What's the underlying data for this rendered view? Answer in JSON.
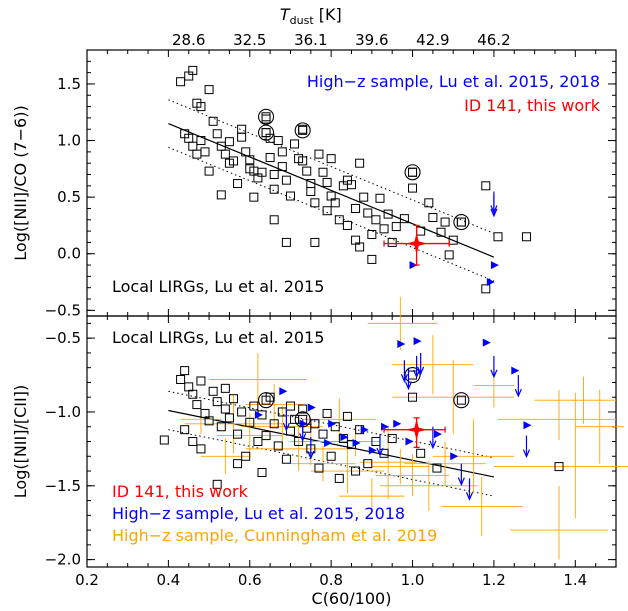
{
  "chart_data": {
    "type": "scatter",
    "colors": {
      "local": "#000000",
      "highz": "#0000ff",
      "cunningham": "#ffa500",
      "id141": "#ff0000"
    },
    "top_axis": {
      "label_symbol": "T",
      "label_subscript": "dust",
      "label_unit": " [K]",
      "tick_labels": [
        "28.6",
        "32.5",
        "36.1",
        "39.6",
        "42.9",
        "46.2"
      ],
      "tick_positions_x": [
        0.45,
        0.6,
        0.75,
        0.9,
        1.05,
        1.2
      ]
    },
    "x_axis": {
      "label": "C(60/100)",
      "range": [
        0.2,
        1.5
      ],
      "ticks": [
        0.2,
        0.4,
        0.6,
        0.8,
        1.0,
        1.2,
        1.4
      ],
      "tick_labels": [
        "0.2",
        "0.4",
        "0.6",
        "0.8",
        "1.0",
        "1.2",
        "1.4"
      ]
    },
    "panels": [
      {
        "id": "top",
        "ylabel": "Log([NII]/CO (7−6))",
        "y_range": [
          -0.55,
          1.8
        ],
        "y_ticks": [
          -0.5,
          0.0,
          0.5,
          1.0,
          1.5
        ],
        "y_tick_labels": [
          "−0.5",
          "0.0",
          "0.5",
          "1.0",
          "1.5"
        ],
        "annotations": [
          {
            "text": "High−z sample, Lu et al. 2015, 2018",
            "color": "#0000ff"
          },
          {
            "text": "ID 141, this work",
            "color": "#ff0000"
          },
          {
            "text": "Local LIRGs, Lu et al. 2015",
            "color": "#000000"
          }
        ],
        "fit": {
          "x": [
            0.4,
            1.2
          ],
          "y": [
            1.15,
            -0.03
          ],
          "band": 0.21
        },
        "local_lirgs": [
          [
            0.43,
            1.52
          ],
          [
            0.45,
            1.57
          ],
          [
            0.46,
            1.62
          ],
          [
            0.47,
            1.33
          ],
          [
            0.48,
            1.3
          ],
          [
            0.5,
            1.45
          ],
          [
            0.51,
            1.17
          ],
          [
            0.44,
            1.06
          ],
          [
            0.45,
            1.02
          ],
          [
            0.46,
            0.95
          ],
          [
            0.47,
            0.88
          ],
          [
            0.48,
            1.0
          ],
          [
            0.49,
            0.9
          ],
          [
            0.5,
            0.73
          ],
          [
            0.52,
            1.06
          ],
          [
            0.53,
            0.95
          ],
          [
            0.54,
            0.88
          ],
          [
            0.55,
            0.99
          ],
          [
            0.55,
            0.8
          ],
          [
            0.56,
            0.82
          ],
          [
            0.57,
            0.62
          ],
          [
            0.58,
            1.1
          ],
          [
            0.58,
            1.03
          ],
          [
            0.59,
            0.9
          ],
          [
            0.6,
            0.83
          ],
          [
            0.6,
            0.75
          ],
          [
            0.61,
            0.73
          ],
          [
            0.62,
            0.67
          ],
          [
            0.63,
            0.72
          ],
          [
            0.64,
            1.07
          ],
          [
            0.64,
            1.19
          ],
          [
            0.65,
            1.02
          ],
          [
            0.65,
            0.85
          ],
          [
            0.66,
            0.7
          ],
          [
            0.66,
            0.57
          ],
          [
            0.67,
            1.0
          ],
          [
            0.68,
            0.9
          ],
          [
            0.68,
            0.77
          ],
          [
            0.69,
            0.65
          ],
          [
            0.7,
            0.51
          ],
          [
            0.71,
            0.97
          ],
          [
            0.72,
            0.84
          ],
          [
            0.73,
            0.82
          ],
          [
            0.73,
            1.1
          ],
          [
            0.74,
            0.73
          ],
          [
            0.75,
            0.62
          ],
          [
            0.75,
            0.55
          ],
          [
            0.76,
            0.45
          ],
          [
            0.77,
            0.88
          ],
          [
            0.78,
            0.72
          ],
          [
            0.79,
            0.63
          ],
          [
            0.79,
            0.38
          ],
          [
            0.8,
            0.51
          ],
          [
            0.8,
            0.84
          ],
          [
            0.81,
            0.45
          ],
          [
            0.82,
            0.3
          ],
          [
            0.83,
            0.6
          ],
          [
            0.84,
            0.65
          ],
          [
            0.84,
            0.25
          ],
          [
            0.85,
            0.61
          ],
          [
            0.86,
            0.4
          ],
          [
            0.86,
            0.12
          ],
          [
            0.87,
            0.8
          ],
          [
            0.88,
            0.5
          ],
          [
            0.89,
            0.36
          ],
          [
            0.9,
            0.17
          ],
          [
            0.91,
            0.3
          ],
          [
            0.92,
            0.49
          ],
          [
            0.93,
            0.22
          ],
          [
            0.94,
            0.35
          ],
          [
            0.95,
            0.1
          ],
          [
            0.96,
            0.24
          ],
          [
            0.98,
            0.31
          ],
          [
            1.0,
            0.72
          ],
          [
            1.0,
            0.58
          ],
          [
            1.02,
            0.2
          ],
          [
            1.04,
            0.45
          ],
          [
            1.05,
            0.32
          ],
          [
            1.07,
            0.19
          ],
          [
            1.08,
            0.28
          ],
          [
            1.09,
            -0.01
          ],
          [
            1.1,
            0.12
          ],
          [
            1.12,
            0.28
          ],
          [
            1.18,
            0.6
          ],
          [
            1.21,
            0.15
          ],
          [
            1.28,
            0.15
          ],
          [
            1.18,
            -0.31
          ],
          [
            0.61,
            0.5
          ],
          [
            0.66,
            0.3
          ],
          [
            0.69,
            0.1
          ],
          [
            0.76,
            0.1
          ],
          [
            0.87,
            0.06
          ],
          [
            0.9,
            -0.05
          ],
          [
            0.53,
            0.52
          ]
        ],
        "local_circled": [
          [
            0.64,
            1.21
          ],
          [
            0.64,
            1.07
          ],
          [
            0.73,
            1.09
          ],
          [
            1.0,
            0.72
          ],
          [
            1.12,
            0.28
          ]
        ],
        "highz_down": [
          [
            1.2,
            0.55
          ],
          [
            1.2,
            0.52
          ]
        ],
        "highz_right": [
          [
            1.0,
            -0.1
          ],
          [
            1.2,
            -0.1
          ],
          [
            1.19,
            -0.25
          ]
        ],
        "id141": {
          "x": 1.01,
          "y": 0.09,
          "xerr": [
            0.08,
            0.08
          ],
          "yerr": [
            0.19,
            0.16
          ]
        }
      },
      {
        "id": "bottom",
        "ylabel": "Log([NII]/[CII])",
        "y_range": [
          -2.05,
          -0.35
        ],
        "y_ticks": [
          -2.0,
          -1.5,
          -1.0,
          -0.5
        ],
        "y_tick_labels": [
          "−2.0",
          "−1.5",
          "−1.0",
          "−0.5"
        ],
        "annotations": [
          {
            "text": "Local LIRGs, Lu et al. 2015",
            "color": "#000000"
          },
          {
            "text": "ID 141, this work",
            "color": "#ff0000"
          },
          {
            "text": "High−z sample, Lu et al. 2015, 2018",
            "color": "#0000ff"
          },
          {
            "text": "High−z sample, Cunningham et al. 2019",
            "color": "#ffa500"
          }
        ],
        "fit": {
          "x": [
            0.4,
            1.2
          ],
          "y": [
            -0.99,
            -1.44
          ],
          "band": 0.13
        },
        "local_lirgs": [
          [
            0.39,
            -1.19
          ],
          [
            0.43,
            -0.78
          ],
          [
            0.44,
            -0.72
          ],
          [
            0.45,
            -0.83
          ],
          [
            0.46,
            -0.88
          ],
          [
            0.47,
            -0.95
          ],
          [
            0.48,
            -0.79
          ],
          [
            0.49,
            -1.01
          ],
          [
            0.5,
            -1.06
          ],
          [
            0.51,
            -0.86
          ],
          [
            0.52,
            -0.93
          ],
          [
            0.53,
            -1.1
          ],
          [
            0.54,
            -0.98
          ],
          [
            0.55,
            -1.04
          ],
          [
            0.56,
            -0.91
          ],
          [
            0.57,
            -1.15
          ],
          [
            0.58,
            -1.0
          ],
          [
            0.59,
            -1.3
          ],
          [
            0.6,
            -1.07
          ],
          [
            0.61,
            -0.96
          ],
          [
            0.62,
            -1.2
          ],
          [
            0.63,
            -1.02
          ],
          [
            0.64,
            -1.16
          ],
          [
            0.65,
            -0.9
          ],
          [
            0.66,
            -1.08
          ],
          [
            0.67,
            -1.23
          ],
          [
            0.68,
            -1.0
          ],
          [
            0.69,
            -1.32
          ],
          [
            0.7,
            -1.13
          ],
          [
            0.71,
            -1.05
          ],
          [
            0.72,
            -1.2
          ],
          [
            0.73,
            -0.98
          ],
          [
            0.74,
            -1.11
          ],
          [
            0.75,
            -1.25
          ],
          [
            0.76,
            -1.08
          ],
          [
            0.77,
            -1.38
          ],
          [
            0.78,
            -1.15
          ],
          [
            0.79,
            -1.01
          ],
          [
            0.8,
            -1.3
          ],
          [
            0.81,
            -1.1
          ],
          [
            0.82,
            -1.45
          ],
          [
            0.83,
            -1.18
          ],
          [
            0.84,
            -1.03
          ],
          [
            0.85,
            -1.22
          ],
          [
            0.86,
            -1.4
          ],
          [
            0.87,
            -1.12
          ],
          [
            0.89,
            -1.35
          ],
          [
            0.91,
            -1.2
          ],
          [
            0.93,
            -1.28
          ],
          [
            0.95,
            -1.18
          ],
          [
            1.0,
            -0.9
          ],
          [
            1.02,
            -1.28
          ],
          [
            1.06,
            -1.38
          ],
          [
            1.36,
            -1.37
          ],
          [
            0.44,
            -1.12
          ],
          [
            0.46,
            -1.2
          ],
          [
            0.48,
            -1.25
          ],
          [
            0.52,
            -1.49
          ],
          [
            0.57,
            -1.35
          ],
          [
            0.54,
            -0.84
          ],
          [
            0.7,
            -0.96
          ],
          [
            0.63,
            -1.41
          ]
        ],
        "local_circled": [
          [
            0.64,
            -0.92
          ],
          [
            0.73,
            -1.05
          ],
          [
            1.0,
            -0.75
          ],
          [
            1.12,
            -0.92
          ]
        ],
        "highz_down": [
          [
            0.98,
            -0.65
          ],
          [
            0.99,
            -0.7
          ],
          [
            1.01,
            -0.62
          ],
          [
            1.02,
            -0.6
          ],
          [
            1.2,
            -0.62
          ],
          [
            1.26,
            -0.75
          ],
          [
            1.28,
            -1.16
          ],
          [
            0.69,
            -0.98
          ],
          [
            0.73,
            -1.05
          ],
          [
            0.75,
            -1.17
          ],
          [
            1.05,
            -1.1
          ],
          [
            1.14,
            -1.45
          ],
          [
            1.12,
            -1.35
          ],
          [
            0.92,
            -1.15
          ]
        ],
        "highz_right": [
          [
            0.97,
            -0.54
          ],
          [
            1.01,
            -0.52
          ],
          [
            1.18,
            -0.53
          ],
          [
            1.25,
            -0.72
          ],
          [
            1.28,
            -1.09
          ],
          [
            0.68,
            -0.86
          ],
          [
            0.75,
            -0.97
          ],
          [
            0.8,
            -1.08
          ],
          [
            0.83,
            -1.17
          ],
          [
            0.86,
            -1.21
          ],
          [
            0.9,
            -1.26
          ],
          [
            0.93,
            -1.1
          ],
          [
            0.96,
            -1.08
          ],
          [
            0.99,
            -1.2
          ],
          [
            1.06,
            -1.15
          ],
          [
            1.1,
            -1.3
          ],
          [
            0.73,
            -1.08
          ],
          [
            0.62,
            -1.02
          ],
          [
            0.79,
            -1.21
          ],
          [
            0.88,
            -1.12
          ]
        ],
        "cunningham": [
          [
            0.97,
            -0.4,
            0.08,
            0.09,
            0.18,
            0.18
          ],
          [
            1.05,
            -0.68,
            0.1,
            0.1,
            0.2,
            0.2
          ],
          [
            1.1,
            -0.9,
            0.15,
            0.15,
            0.25,
            0.25
          ],
          [
            1.2,
            -0.82,
            0.05,
            0.05,
            0.15,
            0.15
          ],
          [
            1.42,
            -0.92,
            0.12,
            0.08,
            0.16,
            0.16
          ],
          [
            1.36,
            -1.05,
            0.15,
            0.14,
            0.14,
            0.2
          ],
          [
            0.62,
            -0.78,
            0.12,
            0.12,
            0.18,
            0.18
          ],
          [
            0.68,
            -1.1,
            0.1,
            0.1,
            0.14,
            0.14
          ],
          [
            0.6,
            -1.16,
            0.08,
            0.08,
            0.15,
            0.15
          ],
          [
            0.56,
            -1.08,
            0.12,
            0.12,
            0.2,
            0.2
          ],
          [
            0.72,
            -1.25,
            0.13,
            0.13,
            0.15,
            0.15
          ],
          [
            0.78,
            -1.35,
            0.08,
            0.08,
            0.12,
            0.12
          ],
          [
            0.84,
            -1.4,
            0.09,
            0.09,
            0.15,
            0.15
          ],
          [
            0.94,
            -1.34,
            0.07,
            0.07,
            0.25,
            0.25
          ],
          [
            0.97,
            -1.37,
            0.07,
            0.07,
            0.12,
            0.12
          ],
          [
            1.0,
            -1.43,
            0.09,
            0.09,
            0.14,
            0.14
          ],
          [
            1.04,
            -1.5,
            0.12,
            0.12,
            0.17,
            0.17
          ],
          [
            1.08,
            -1.35,
            0.1,
            0.1,
            0.15,
            0.15
          ],
          [
            1.15,
            -1.3,
            0.1,
            0.1,
            0.25,
            0.25
          ],
          [
            1.4,
            -1.37,
            0.2,
            0.2,
            0.35,
            0.5
          ],
          [
            1.36,
            -1.8,
            0.12,
            0.12,
            0.2,
            0.3
          ],
          [
            0.54,
            -1.3,
            0.06,
            0.06,
            0.12,
            0.12
          ],
          [
            0.48,
            -1.05,
            0.05,
            0.05,
            0.1,
            0.1
          ],
          [
            0.66,
            -0.95,
            0.07,
            0.07,
            0.14,
            0.14
          ],
          [
            0.86,
            -1.2,
            0.06,
            0.06,
            0.1,
            0.1
          ],
          [
            0.9,
            -1.57,
            0.08,
            0.08,
            0.12,
            0.12
          ],
          [
            1.17,
            -1.64,
            0.1,
            0.1,
            0.2,
            0.2
          ],
          [
            0.82,
            -1.05,
            0.09,
            0.09,
            0.14,
            0.14
          ],
          [
            0.75,
            -1.2,
            0.05,
            0.05,
            0.16,
            0.16
          ],
          [
            1.46,
            -1.1,
            0.06,
            0.06,
            0.25,
            0.25
          ]
        ],
        "id141": {
          "x": 1.01,
          "y": -1.12,
          "xerr": [
            0.08,
            0.07
          ],
          "yerr": [
            0.12,
            0.08
          ]
        }
      }
    ]
  }
}
